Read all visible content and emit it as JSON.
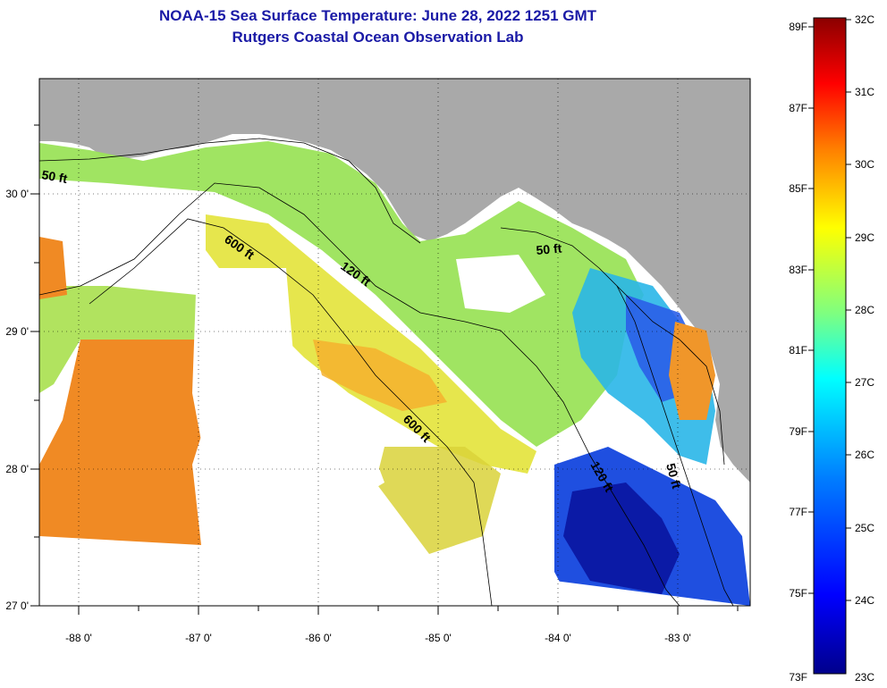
{
  "title_line1": "NOAA-15 Sea Surface Temperature:  June 28, 2022 1251 GMT",
  "title_line2": "Rutgers Coastal Ocean Observation Lab",
  "lon_ticks": [
    "-88 0'",
    "-87 0'",
    "-86 0'",
    "-85 0'",
    "-84 0'",
    "-83 0'"
  ],
  "lat_ticks": [
    "30 0'",
    "29 0'",
    "28 0'",
    "27 0'"
  ],
  "contours": [
    "50 ft",
    "600 ft",
    "120 ft",
    "600 ft",
    "50 ft",
    "120 ft",
    "50 ft"
  ],
  "colorbar": {
    "fahrenheit": [
      "89F",
      "87F",
      "85F",
      "83F",
      "81F",
      "79F",
      "77F",
      "75F",
      "73F"
    ],
    "celsius": [
      "32C",
      "31C",
      "30C",
      "29C",
      "28C",
      "27C",
      "26C",
      "25C",
      "24C",
      "23C"
    ],
    "colors": [
      "#8b0000",
      "#ff0000",
      "#ff7f00",
      "#ffff00",
      "#7fff7f",
      "#00ffff",
      "#007fff",
      "#0000ff",
      "#00008b"
    ]
  },
  "colors": {
    "land": "#a9a9a9",
    "title": "#1a1aa6"
  }
}
